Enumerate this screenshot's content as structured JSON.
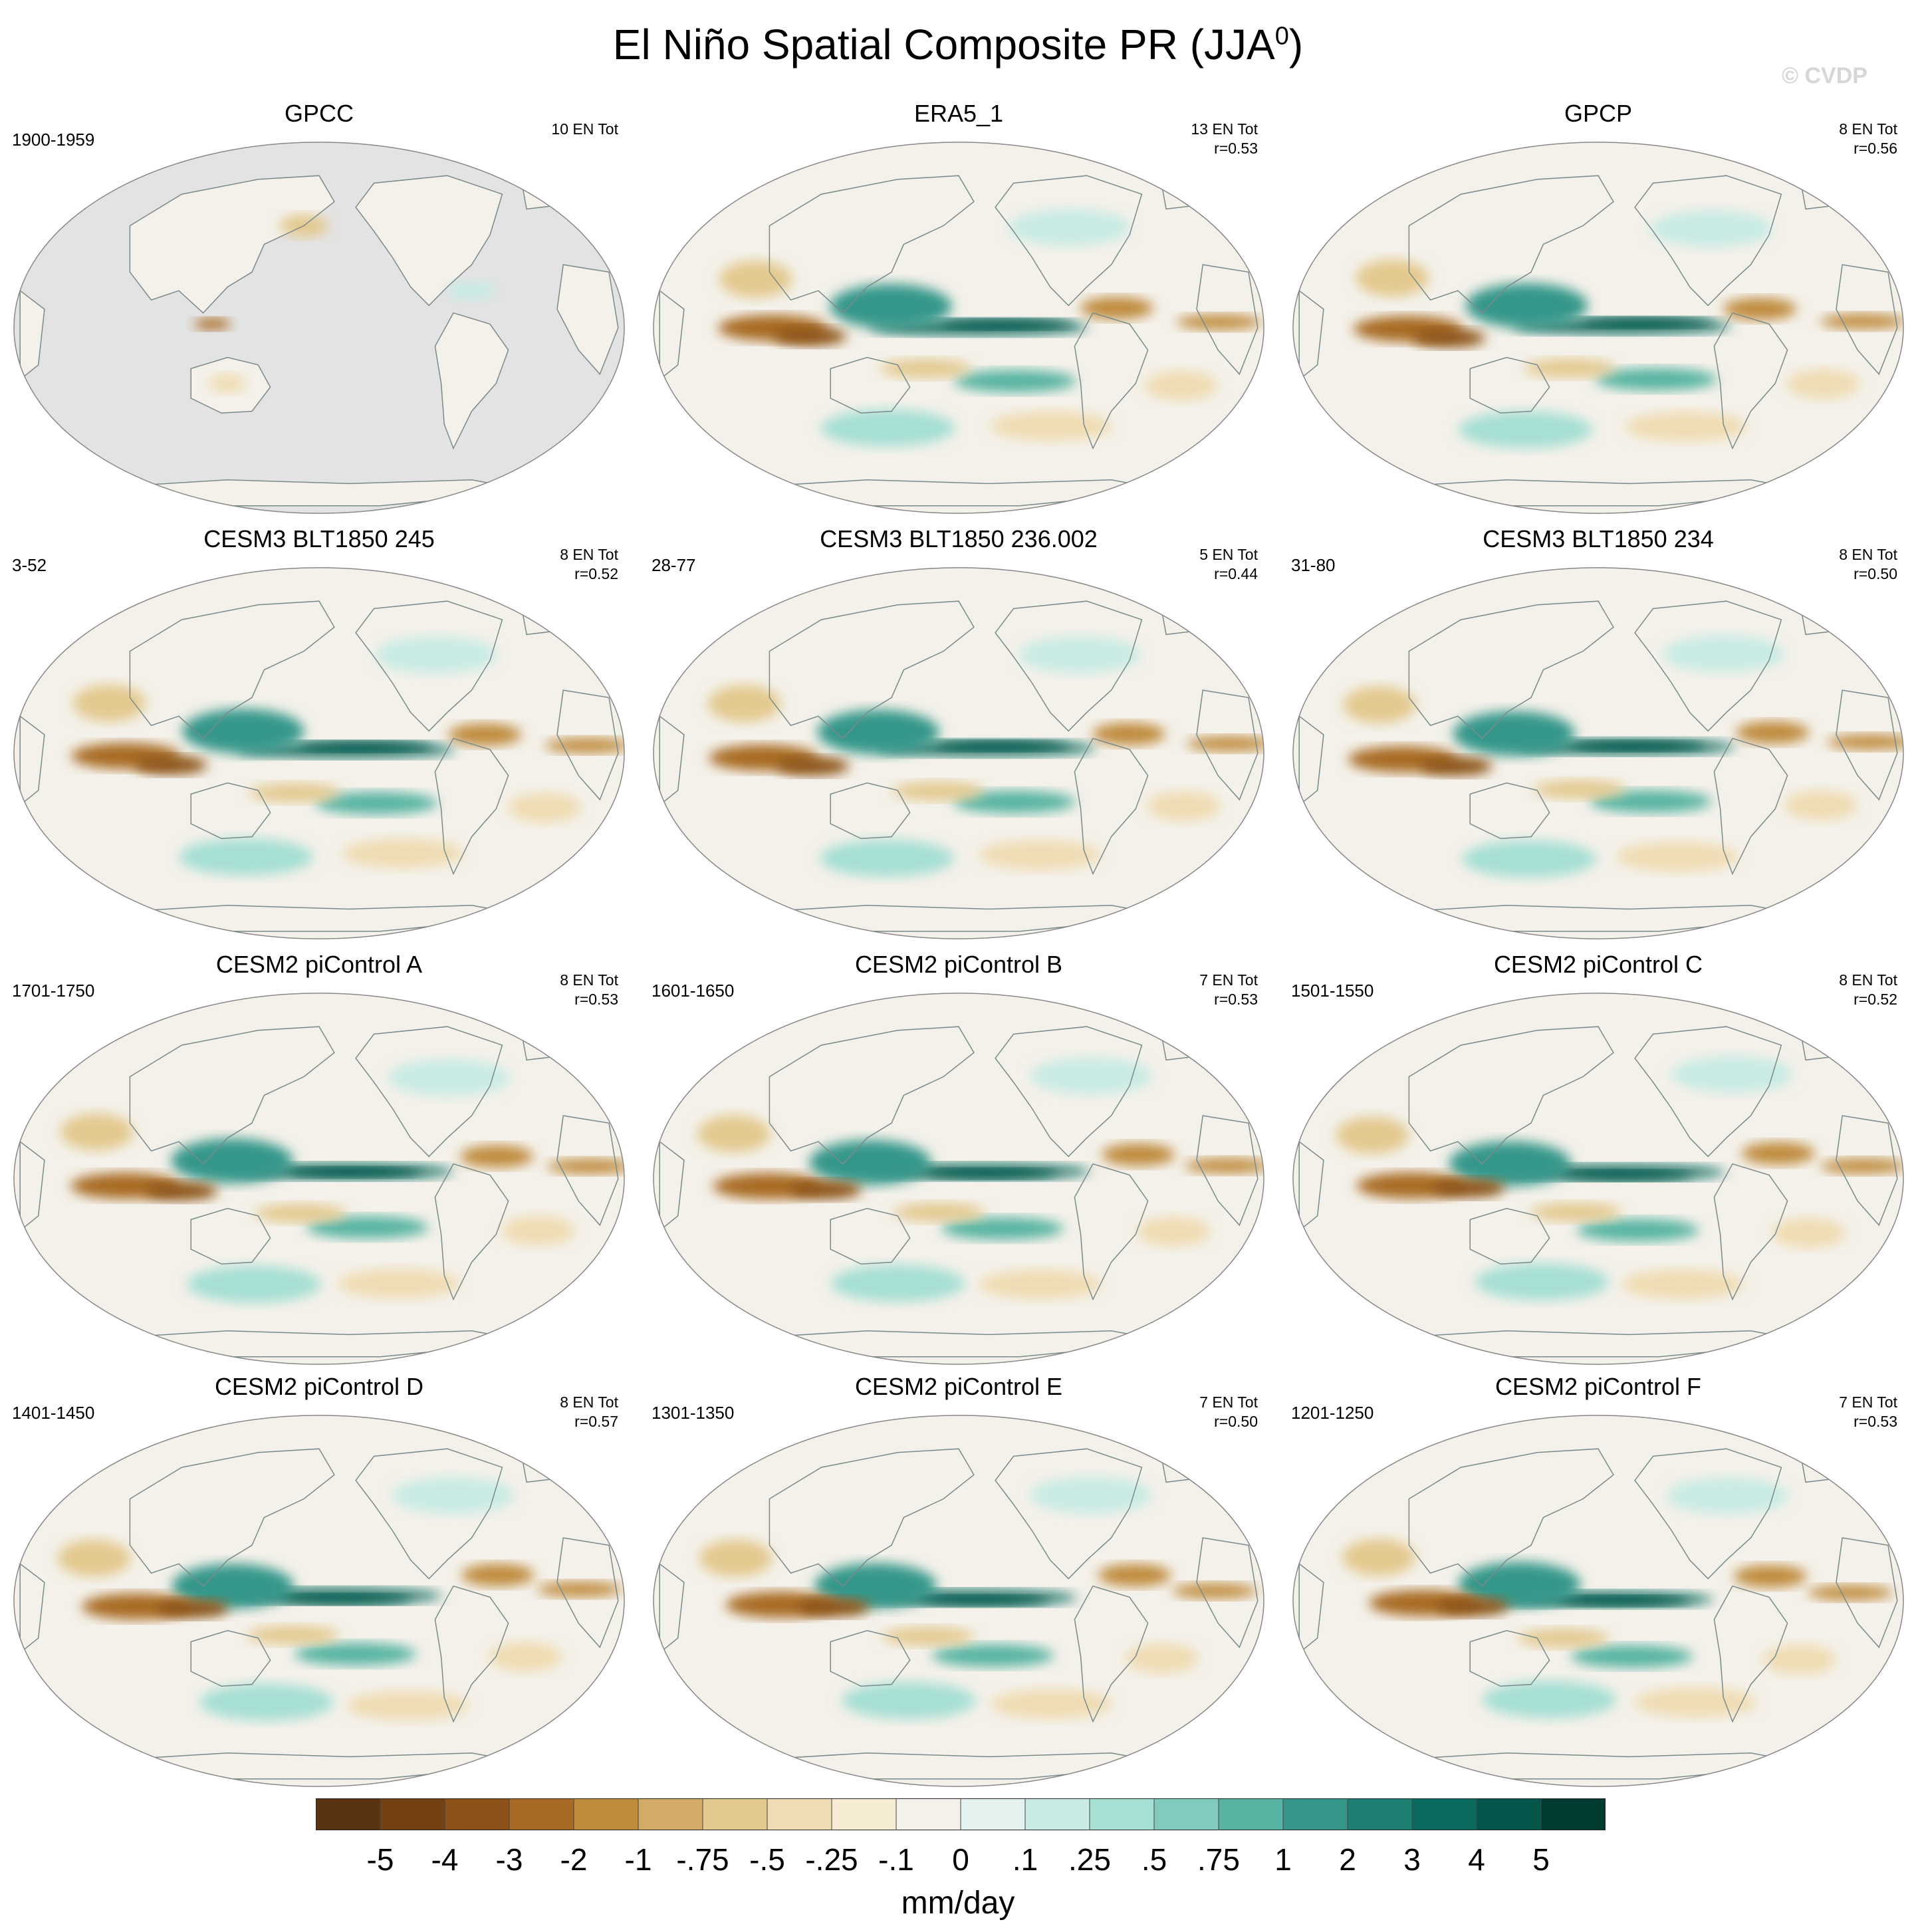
{
  "title": "El Niño Spatial Composite PR (JJA",
  "title_sup": "0",
  "title_close": ")",
  "watermark": "© CVDP",
  "colors": {
    "ocean_missing": "#e3e3e3",
    "outline": "#888888",
    "coast": "#7a8a8a"
  },
  "panels": [
    {
      "name": "GPCC",
      "period": "1900-1959",
      "count": "10 EN Tot",
      "r": "",
      "type": "land"
    },
    {
      "name": "ERA5_1",
      "period": "",
      "count": "13 EN Tot",
      "r": "r=0.53",
      "type": "full"
    },
    {
      "name": "GPCP",
      "period": "",
      "count": "8 EN Tot",
      "r": "r=0.56",
      "type": "full"
    },
    {
      "name": "CESM3 BLT1850 245",
      "period": "3-52",
      "count": "8 EN Tot",
      "r": "r=0.52",
      "type": "full"
    },
    {
      "name": "CESM3 BLT1850 236.002",
      "period": "28-77",
      "count": "5 EN Tot",
      "r": "r=0.44",
      "type": "full"
    },
    {
      "name": "CESM3 BLT1850 234",
      "period": "31-80",
      "count": "8 EN Tot",
      "r": "r=0.50",
      "type": "full"
    },
    {
      "name": "CESM2 piControl A",
      "period": "1701-1750",
      "count": "8 EN Tot",
      "r": "r=0.53",
      "type": "full"
    },
    {
      "name": "CESM2 piControl B",
      "period": "1601-1650",
      "count": "7 EN Tot",
      "r": "r=0.53",
      "type": "full"
    },
    {
      "name": "CESM2 piControl C",
      "period": "1501-1550",
      "count": "8 EN Tot",
      "r": "r=0.52",
      "type": "full"
    },
    {
      "name": "CESM2 piControl D",
      "period": "1401-1450",
      "count": "8 EN Tot",
      "r": "r=0.57",
      "type": "full"
    },
    {
      "name": "CESM2 piControl E",
      "period": "1301-1350",
      "count": "7 EN Tot",
      "r": "r=0.50",
      "type": "full"
    },
    {
      "name": "CESM2 piControl F",
      "period": "1201-1250",
      "count": "7 EN Tot",
      "r": "r=0.53",
      "type": "full"
    }
  ],
  "colorbar": {
    "colors": [
      "#5a3310",
      "#744113",
      "#8c5217",
      "#a86a24",
      "#bf8b3c",
      "#d2ab67",
      "#e3c98f",
      "#efdcb2",
      "#f6ecd4",
      "#f4f1ea",
      "#e3f2ef",
      "#c8ebe4",
      "#a6dfd4",
      "#80cbbd",
      "#57b4a2",
      "#36978a",
      "#1e7f72",
      "#0a6a5e",
      "#04564b",
      "#003b31"
    ],
    "labels": [
      "-5",
      "-4",
      "-3",
      "-2",
      "-1",
      "-.75",
      "-.5",
      "-.25",
      "-.1",
      "0",
      ".1",
      ".25",
      ".5",
      ".75",
      "1",
      "2",
      "3",
      "4",
      "5"
    ],
    "units": "mm/day"
  },
  "chart_data": {
    "type": "heatmap",
    "title": "El Niño Spatial Composite PR (JJA0)",
    "variable": "PR",
    "season": "JJA0",
    "units": "mm/day",
    "projection": "Robinson, Pacific-centered",
    "contour_levels": [
      -5,
      -4,
      -3,
      -2,
      -1,
      -0.75,
      -0.5,
      -0.25,
      -0.1,
      0,
      0.1,
      0.25,
      0.5,
      0.75,
      1,
      2,
      3,
      4,
      5
    ],
    "panels": [
      {
        "name": "GPCC",
        "period": "1900-1959",
        "n_events": 10,
        "pattern_r": null,
        "coverage": "land only"
      },
      {
        "name": "ERA5_1",
        "period": null,
        "n_events": 13,
        "pattern_r": 0.53
      },
      {
        "name": "GPCP",
        "period": null,
        "n_events": 8,
        "pattern_r": 0.56
      },
      {
        "name": "CESM3 BLT1850 245",
        "period": "3-52",
        "n_events": 8,
        "pattern_r": 0.52
      },
      {
        "name": "CESM3 BLT1850 236.002",
        "period": "28-77",
        "n_events": 5,
        "pattern_r": 0.44
      },
      {
        "name": "CESM3 BLT1850 234",
        "period": "31-80",
        "n_events": 8,
        "pattern_r": 0.5
      },
      {
        "name": "CESM2 piControl A",
        "period": "1701-1750",
        "n_events": 8,
        "pattern_r": 0.53
      },
      {
        "name": "CESM2 piControl B",
        "period": "1601-1650",
        "n_events": 7,
        "pattern_r": 0.53
      },
      {
        "name": "CESM2 piControl C",
        "period": "1501-1550",
        "n_events": 8,
        "pattern_r": 0.52
      },
      {
        "name": "CESM2 piControl D",
        "period": "1401-1450",
        "n_events": 8,
        "pattern_r": 0.57
      },
      {
        "name": "CESM2 piControl E",
        "period": "1301-1350",
        "n_events": 7,
        "pattern_r": 0.5
      },
      {
        "name": "CESM2 piControl F",
        "period": "1201-1250",
        "n_events": 7,
        "pattern_r": 0.53
      }
    ]
  }
}
